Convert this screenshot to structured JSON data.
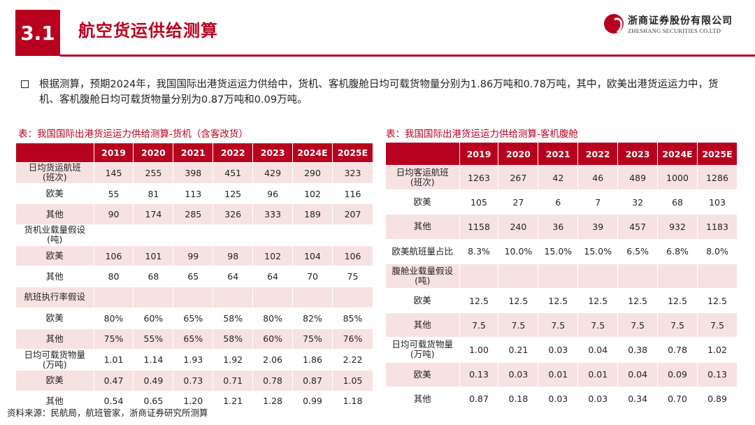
{
  "header": {
    "section_number": "3.1",
    "title": "航空货运供给测算",
    "logo_cn": "浙商证券股份有限公司",
    "logo_en": "ZHESHANG SECURITIES CO.LTD"
  },
  "bullet": "根据测算，预期2024年，我国国际出港货运运力供给中，货机、客机腹舱日均可载货物量分别为1.86万吨和0.78万吨，其中，欧美出港货运运力中，货机、客机腹舱日均可载货物量分别为0.87万吨和0.09万吨。",
  "left_table": {
    "caption": "表：我国国际出港货运运力供给测算-货机（含客改货）",
    "headers": [
      "",
      "2019",
      "2020",
      "2021",
      "2022",
      "2023",
      "2024E",
      "2025E"
    ],
    "rows": [
      [
        "日均货运航班\n(班次)",
        "145",
        "255",
        "398",
        "451",
        "429",
        "290",
        "323"
      ],
      [
        "欧美",
        "55",
        "81",
        "113",
        "125",
        "96",
        "102",
        "116"
      ],
      [
        "其他",
        "90",
        "174",
        "285",
        "326",
        "333",
        "189",
        "207"
      ],
      [
        "货机业载量假设\n(吨)",
        "",
        "",
        "",
        "",
        "",
        "",
        ""
      ],
      [
        "欧美",
        "106",
        "101",
        "99",
        "98",
        "102",
        "104",
        "106"
      ],
      [
        "其他",
        "80",
        "68",
        "65",
        "64",
        "64",
        "70",
        "75"
      ],
      [
        "航班执行率假设",
        "",
        "",
        "",
        "",
        "",
        "",
        ""
      ],
      [
        "欧美",
        "80%",
        "60%",
        "65%",
        "58%",
        "80%",
        "82%",
        "85%"
      ],
      [
        "其他",
        "75%",
        "55%",
        "65%",
        "58%",
        "60%",
        "75%",
        "76%"
      ],
      [
        "日均可载货物量\n(万吨)",
        "1.01",
        "1.14",
        "1.93",
        "1.92",
        "2.06",
        "1.86",
        "2.22"
      ],
      [
        "欧美",
        "0.47",
        "0.49",
        "0.73",
        "0.71",
        "0.78",
        "0.87",
        "1.05"
      ],
      [
        "其他",
        "0.54",
        "0.65",
        "1.20",
        "1.21",
        "1.28",
        "0.99",
        "1.18"
      ]
    ]
  },
  "right_table": {
    "caption": "表：我国国际出港货运运力供给测算-客机腹舱",
    "headers": [
      "",
      "2019",
      "2020",
      "2021",
      "2022",
      "2023",
      "2024E",
      "2025E"
    ],
    "rows": [
      [
        "日均客运航班\n(班次)",
        "1263",
        "267",
        "42",
        "46",
        "489",
        "1000",
        "1286"
      ],
      [
        "欧美",
        "105",
        "27",
        "6",
        "7",
        "32",
        "68",
        "103"
      ],
      [
        "其他",
        "1158",
        "240",
        "36",
        "39",
        "457",
        "932",
        "1183"
      ],
      [
        "欧美航班量占比",
        "8.3%",
        "10.0%",
        "15.0%",
        "15.0%",
        "6.5%",
        "6.8%",
        "8.0%"
      ],
      [
        "腹舱业载量假设\n(吨)",
        "",
        "",
        "",
        "",
        "",
        "",
        ""
      ],
      [
        "欧美",
        "12.5",
        "12.5",
        "12.5",
        "12.5",
        "12.5",
        "12.5",
        "12.5"
      ],
      [
        "其他",
        "7.5",
        "7.5",
        "7.5",
        "7.5",
        "7.5",
        "7.5",
        "7.5"
      ],
      [
        "日均可载货物量\n(万吨)",
        "1.00",
        "0.21",
        "0.03",
        "0.04",
        "0.38",
        "0.78",
        "1.02"
      ],
      [
        "欧美",
        "0.13",
        "0.03",
        "0.01",
        "0.01",
        "0.04",
        "0.09",
        "0.13"
      ],
      [
        "其他",
        "0.87",
        "0.18",
        "0.03",
        "0.03",
        "0.34",
        "0.70",
        "0.89"
      ]
    ]
  },
  "source": "资料来源：民航局，航班管家，浙商证券研究所测算",
  "colors": {
    "accent": "#b8001f",
    "band": "#f7e2e2"
  }
}
